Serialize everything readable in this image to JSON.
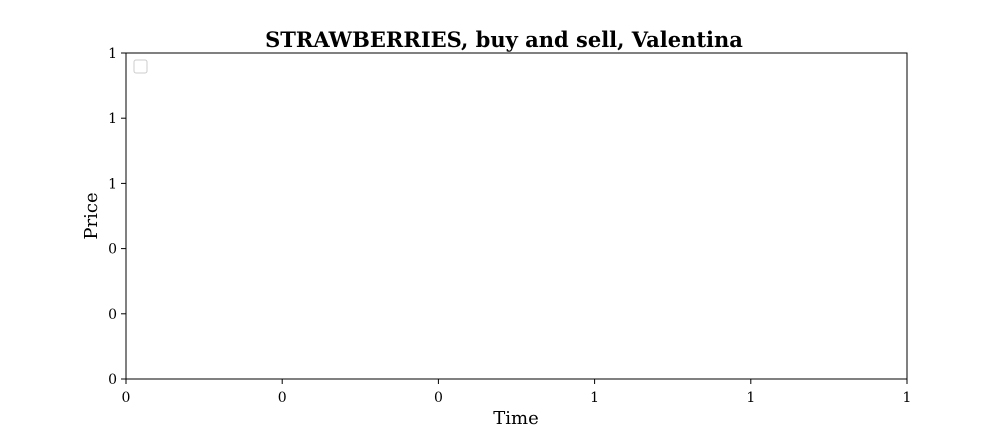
{
  "chart_data": {
    "type": "line",
    "title": "STRAWBERRIES, buy and sell, Valentina",
    "xlabel": "Time",
    "ylabel": "Price",
    "series": [],
    "legend": {
      "placement": "top-left",
      "entries": []
    },
    "x_tick_labels": [
      "0",
      "0",
      "0",
      "1",
      "1",
      "1"
    ],
    "y_tick_labels": [
      "0",
      "0",
      "0",
      "1",
      "1",
      "1"
    ],
    "xlim": [
      0,
      1
    ],
    "ylim": [
      0,
      1
    ],
    "grid": false
  },
  "colors": {
    "axis": "#000000",
    "legend_border": "#cccccc",
    "background": "#ffffff"
  }
}
